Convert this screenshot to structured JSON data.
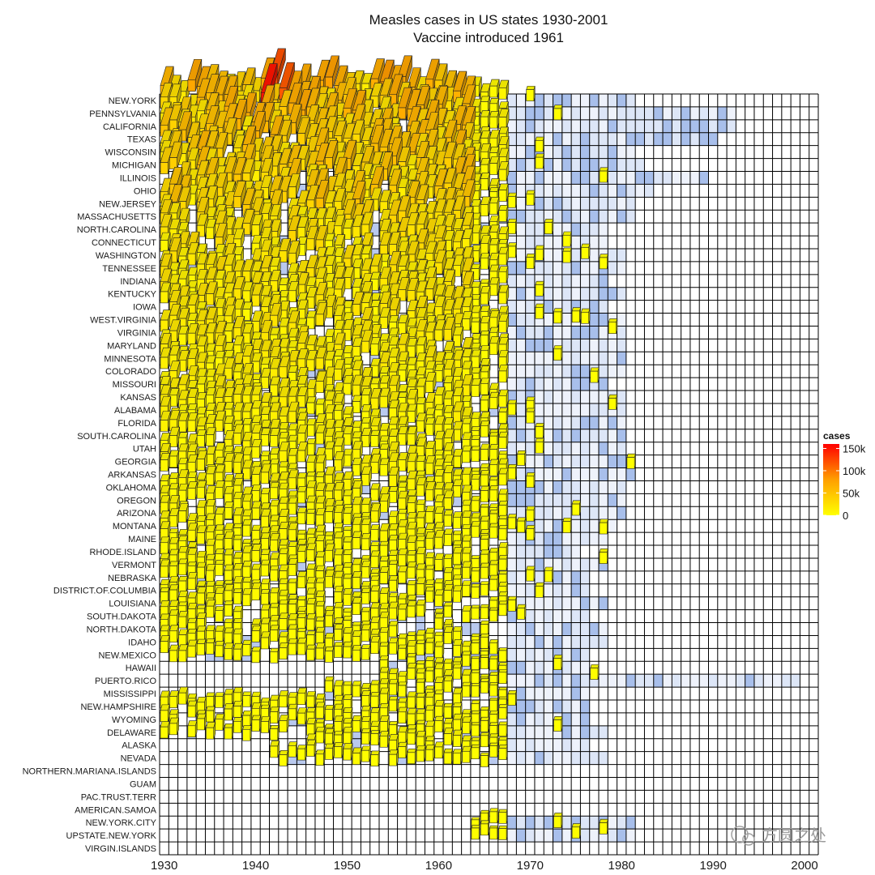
{
  "chart_data": {
    "type": "heatmap",
    "title": "Measles cases in US states 1930-2001",
    "subtitle": "Vaccine introduced 1961",
    "x_range": [
      1930,
      2001
    ],
    "x_ticks": [
      "1930",
      "1940",
      "1950",
      "1960",
      "1970",
      "1980",
      "1990",
      "2000"
    ],
    "rows": [
      "NEW.YORK",
      "PENNSYLVANIA",
      "CALIFORNIA",
      "TEXAS",
      "WISCONSIN",
      "MICHIGAN",
      "ILLINOIS",
      "OHIO",
      "NEW.JERSEY",
      "MASSACHUSETTS",
      "NORTH.CAROLINA",
      "CONNECTICUT",
      "WASHINGTON",
      "TENNESSEE",
      "INDIANA",
      "KENTUCKY",
      "IOWA",
      "WEST.VIRGINIA",
      "VIRGINIA",
      "MARYLAND",
      "MINNESOTA",
      "COLORADO",
      "MISSOURI",
      "KANSAS",
      "ALABAMA",
      "FLORIDA",
      "SOUTH.CAROLINA",
      "UTAH",
      "GEORGIA",
      "ARKANSAS",
      "OKLAHOMA",
      "OREGON",
      "ARIZONA",
      "MONTANA",
      "MAINE",
      "RHODE.ISLAND",
      "VERMONT",
      "NEBRASKA",
      "DISTRICT.OF.COLUMBIA",
      "LOUISIANA",
      "SOUTH.DAKOTA",
      "NORTH.DAKOTA",
      "IDAHO",
      "NEW.MEXICO",
      "HAWAII",
      "PUERTO.RICO",
      "MISSISSIPPI",
      "NEW.HAMPSHIRE",
      "WYOMING",
      "DELAWARE",
      "ALASKA",
      "NEVADA",
      "NORTHERN.MARIANA.ISLANDS",
      "GUAM",
      "PAC.TRUST.TERR",
      "AMERICAN.SAMOA",
      "NEW.YORK.CITY",
      "UPSTATE.NEW.YORK",
      "VIRGIN.ISLANDS"
    ],
    "row_reporting": [
      [
        1930,
        1981
      ],
      [
        1930,
        1992
      ],
      [
        1930,
        1992
      ],
      [
        1930,
        1990
      ],
      [
        1930,
        1981
      ],
      [
        1930,
        1982
      ],
      [
        1930,
        1989
      ],
      [
        1930,
        1983
      ],
      [
        1930,
        1981
      ],
      [
        1930,
        1981
      ],
      [
        1930,
        1978
      ],
      [
        1930,
        1978
      ],
      [
        1930,
        1980
      ],
      [
        1930,
        1980
      ],
      [
        1930,
        1978
      ],
      [
        1930,
        1980
      ],
      [
        1930,
        1978
      ],
      [
        1930,
        1980
      ],
      [
        1930,
        1980
      ],
      [
        1930,
        1980
      ],
      [
        1930,
        1980
      ],
      [
        1930,
        1980
      ],
      [
        1930,
        1978
      ],
      [
        1930,
        1980
      ],
      [
        1930,
        1980
      ],
      [
        1930,
        1980
      ],
      [
        1930,
        1980
      ],
      [
        1930,
        1980
      ],
      [
        1930,
        1981
      ],
      [
        1930,
        1981
      ],
      [
        1930,
        1980
      ],
      [
        1930,
        1980
      ],
      [
        1930,
        1980
      ],
      [
        1930,
        1979
      ],
      [
        1930,
        1978
      ],
      [
        1930,
        1975
      ],
      [
        1930,
        1978
      ],
      [
        1930,
        1976
      ],
      [
        1930,
        1976
      ],
      [
        1930,
        1978
      ],
      [
        1930,
        1976
      ],
      [
        1930,
        1978
      ],
      [
        1930,
        1978
      ],
      [
        1930,
        1976
      ],
      [
        1954,
        1976
      ],
      [
        1954,
        1999
      ],
      [
        1948,
        1976
      ],
      [
        1930,
        1976
      ],
      [
        1930,
        1976
      ],
      [
        1930,
        1978
      ],
      [
        1946,
        1976
      ],
      [
        1942,
        1978
      ],
      null,
      null,
      null,
      null,
      [
        1964,
        1981
      ],
      [
        1964,
        1981
      ],
      null
    ],
    "row_peak_cases": [
      null,
      null,
      null,
      null,
      null,
      null,
      null,
      null,
      null,
      null,
      null,
      null,
      null,
      null,
      null,
      null,
      null,
      null,
      null,
      null,
      null,
      null,
      null,
      null,
      null,
      null,
      null,
      null,
      null,
      null,
      null,
      null,
      null,
      null,
      null,
      null,
      null,
      null,
      null,
      null,
      null,
      null,
      null,
      null,
      null,
      null,
      null,
      null,
      null,
      null,
      null,
      null,
      null,
      null,
      null,
      null,
      null,
      null,
      null
    ],
    "peaks": [
      {
        "state": "PENNSYLVANIA",
        "year": 1941,
        "cases": 150000
      },
      {
        "state": "PENNSYLVANIA",
        "year": 1943,
        "cases": 115000
      },
      {
        "state": "NEW.YORK",
        "year": 1942,
        "cases": 120000
      },
      {
        "state": "NEW.YORK",
        "year": 1944,
        "cases": 100000
      },
      {
        "state": "NEW.YORK",
        "year": 1948,
        "cases": 78000
      },
      {
        "state": "NEW.YORK",
        "year": 1954,
        "cases": 82000
      },
      {
        "state": "NEW.YORK",
        "year": 1956,
        "cases": 74000
      },
      {
        "state": "CALIFORNIA",
        "year": 1939,
        "cases": 68000
      },
      {
        "state": "CALIFORNIA",
        "year": 1945,
        "cases": 72000
      },
      {
        "state": "TEXAS",
        "year": 1938,
        "cases": 64000
      },
      {
        "state": "WISCONSIN",
        "year": 1942,
        "cases": 60000
      }
    ],
    "legend": {
      "title": "cases",
      "ticks": [
        "150k",
        "100k",
        "50k",
        "0"
      ],
      "tick_values": [
        150000,
        100000,
        50000,
        0
      ],
      "max": 160000
    },
    "colors": {
      "low": "#ffff00",
      "mid": "#ff9900",
      "high": "#ff0000",
      "no_data": "#ffffff",
      "grid": "#000000"
    }
  },
  "watermark": "方圆之处"
}
